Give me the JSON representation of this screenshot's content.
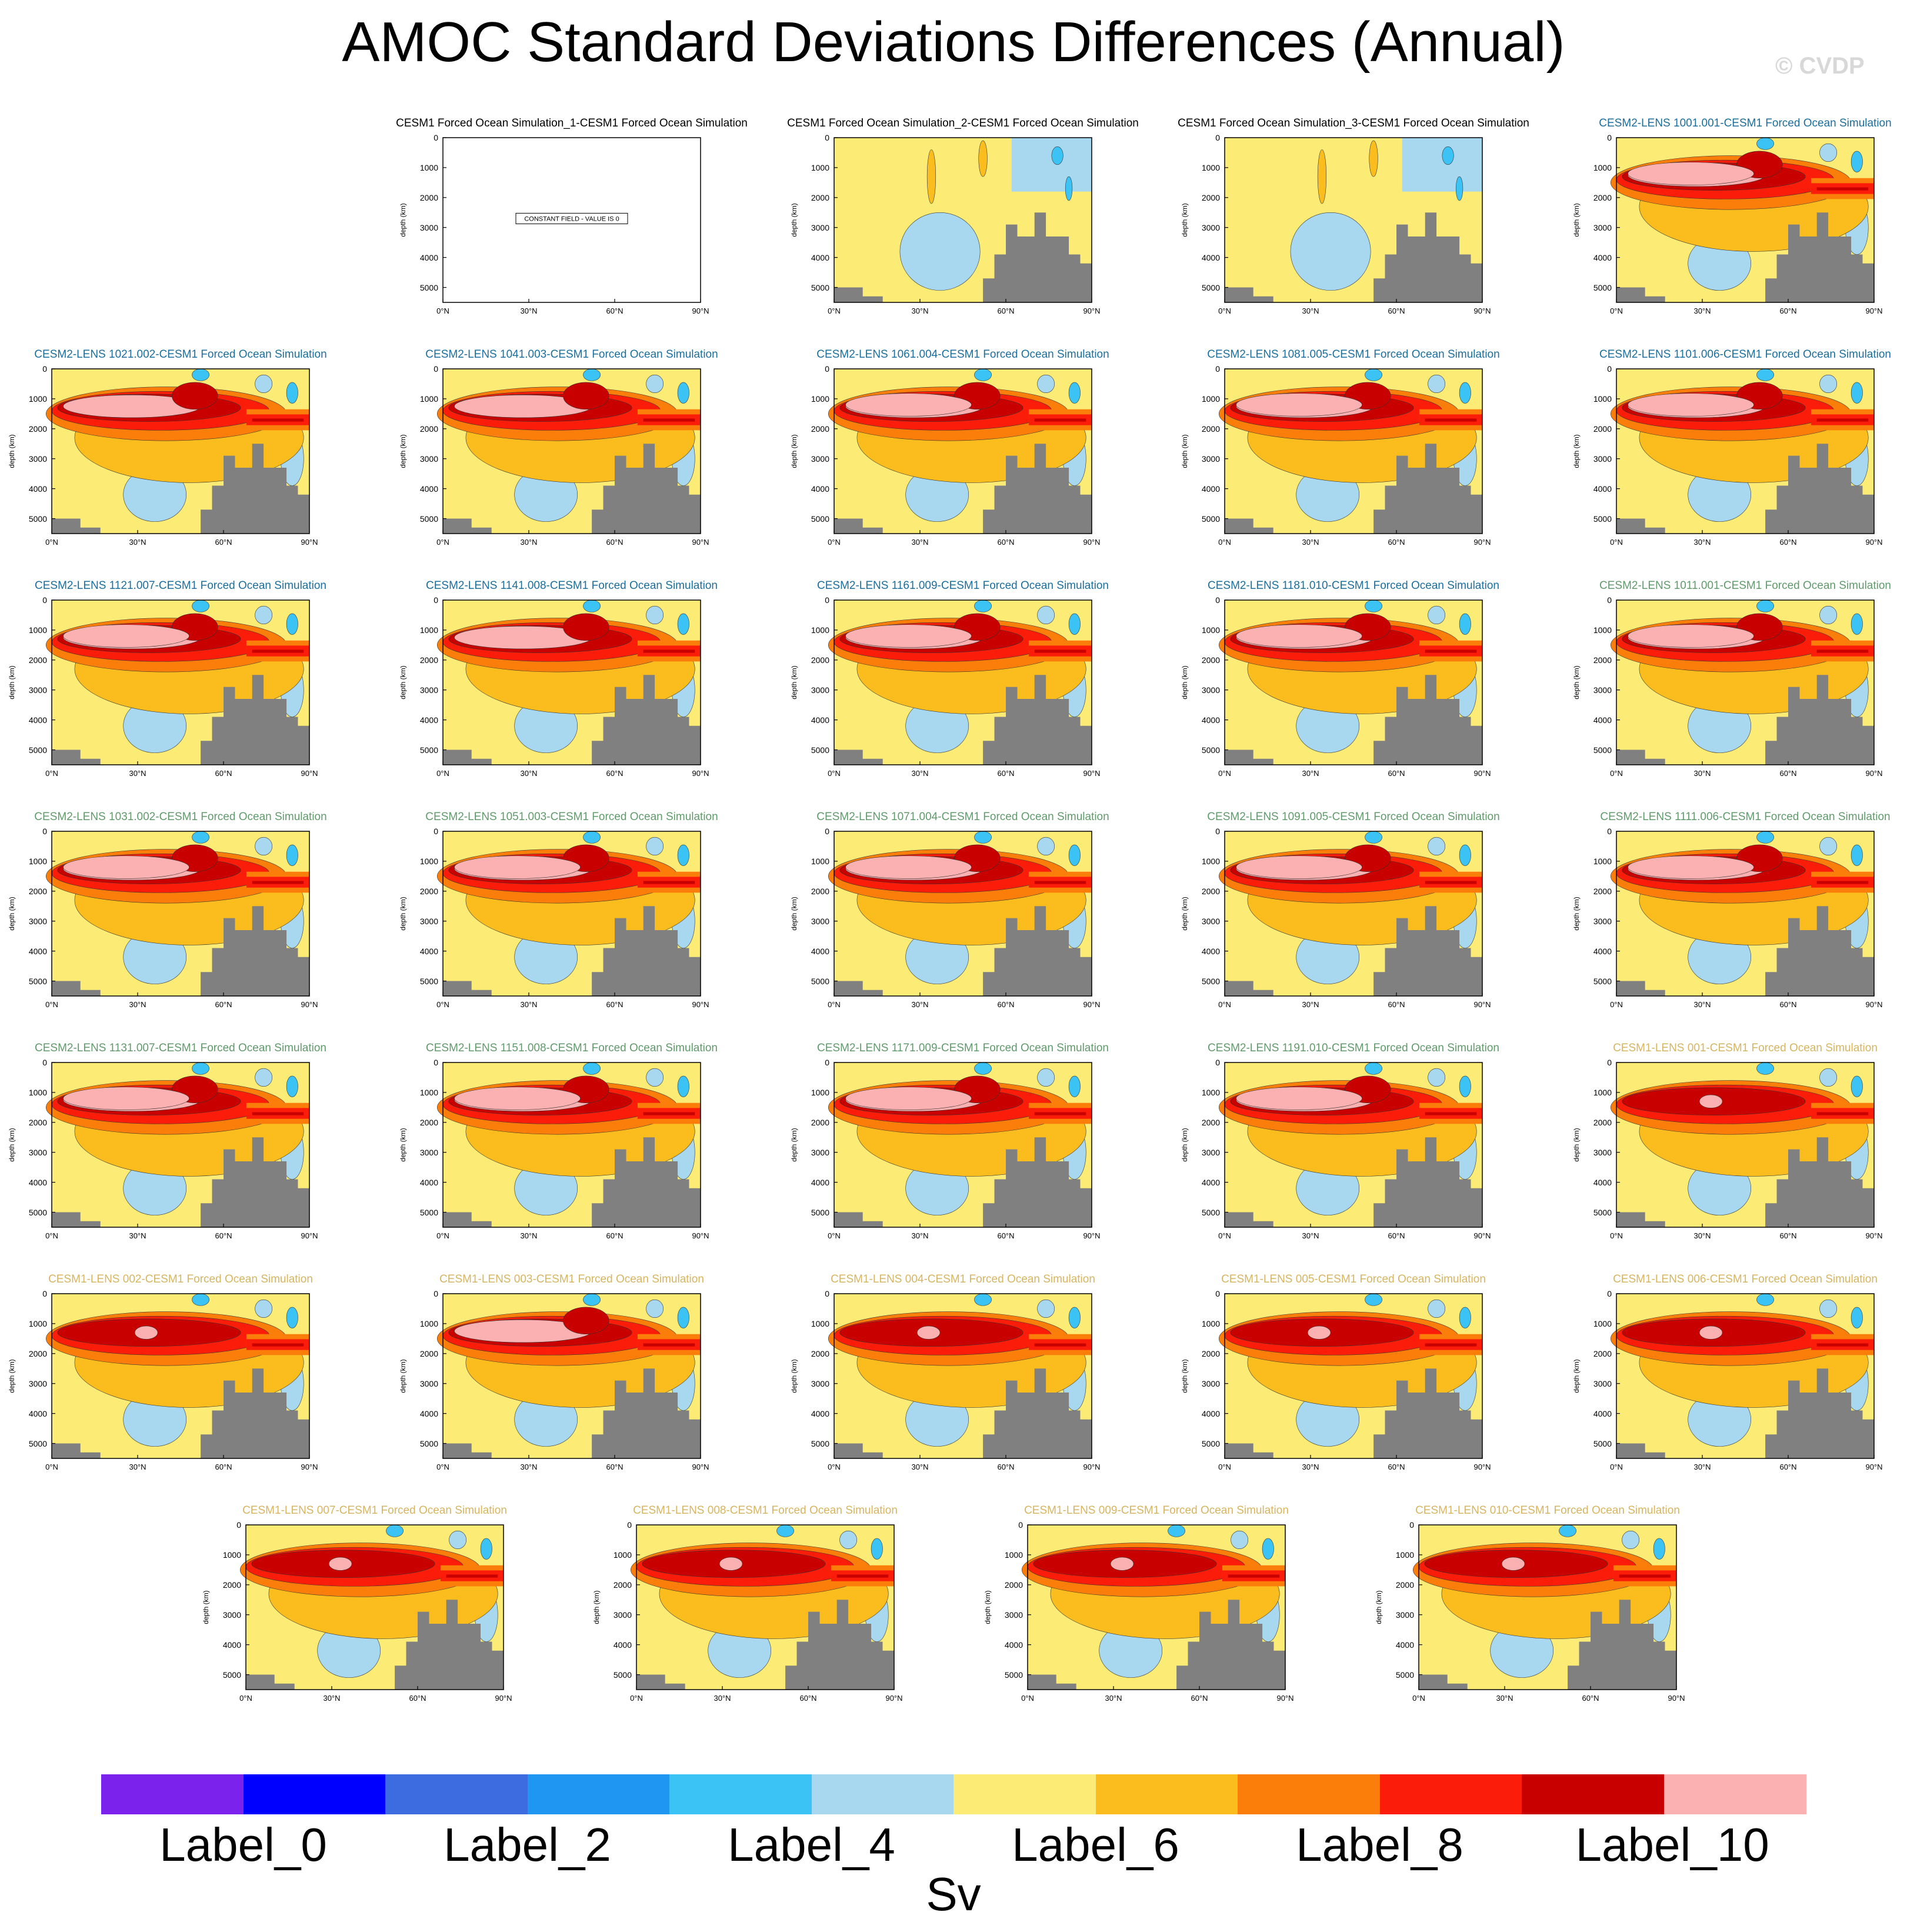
{
  "figure": {
    "title": "AMOC Standard Deviations Differences (Annual)",
    "watermark": "© CVDP",
    "units": "Sv",
    "y_axis_label": "depth (km)",
    "y_ticks": [
      "0",
      "1000",
      "2000",
      "3000",
      "4000",
      "5000"
    ],
    "x_ticks": [
      "0°N",
      "30°N",
      "60°N",
      "90°N"
    ],
    "constant_field_note": "CONSTANT FIELD - VALUE IS 0",
    "title_colors": {
      "forced": "#000000",
      "cesm2_a": "#1a6e9e",
      "cesm2_b": "#5f9a6a",
      "cesm1": "#d7b560"
    }
  },
  "chart_data": {
    "type": "contour",
    "title": "AMOC Standard Deviations Differences (Annual)",
    "xlabel": "",
    "ylabel": "depth (km)",
    "xlim": [
      0,
      90
    ],
    "ylim": [
      5500,
      0
    ],
    "x_ticks": [
      "0°N",
      "30°N",
      "60°N",
      "90°N"
    ],
    "y_ticks": [
      0,
      1000,
      2000,
      3000,
      4000,
      5000
    ],
    "units": "Sv",
    "colorbar": {
      "colors": [
        "#7b22ec",
        "#0000ff",
        "#3d6be0",
        "#1e96f2",
        "#3cc3f5",
        "#a8d8f0",
        "#fcec76",
        "#fbbd1d",
        "#fb7d0a",
        "#fb1d0a",
        "#c80000",
        "#fbb1b1"
      ],
      "labels": [
        "Label_0",
        "Label_2",
        "Label_4",
        "Label_6",
        "Label_8",
        "Label_10"
      ]
    },
    "panels": [
      {
        "title": "CESM1 Forced Ocean Simulation_1-CESM1 Forced Ocean Simulation",
        "group": "forced",
        "constant": true,
        "value": 0
      },
      {
        "title": "CESM1 Forced Ocean Simulation_2-CESM1 Forced Ocean Simulation",
        "group": "forced",
        "intensity": 0
      },
      {
        "title": "CESM1 Forced Ocean Simulation_3-CESM1 Forced Ocean Simulation",
        "group": "forced",
        "intensity": 0
      },
      {
        "title": "CESM2-LENS 1001.001-CESM1 Forced Ocean Simulation",
        "group": "cesm2_a",
        "intensity": 3
      },
      {
        "title": "CESM2-LENS 1021.002-CESM1 Forced Ocean Simulation",
        "group": "cesm2_a",
        "intensity": 2
      },
      {
        "title": "CESM2-LENS 1041.003-CESM1 Forced Ocean Simulation",
        "group": "cesm2_a",
        "intensity": 2
      },
      {
        "title": "CESM2-LENS 1061.004-CESM1 Forced Ocean Simulation",
        "group": "cesm2_a",
        "intensity": 3
      },
      {
        "title": "CESM2-LENS 1081.005-CESM1 Forced Ocean Simulation",
        "group": "cesm2_a",
        "intensity": 3
      },
      {
        "title": "CESM2-LENS 1101.006-CESM1 Forced Ocean Simulation",
        "group": "cesm2_a",
        "intensity": 3
      },
      {
        "title": "CESM2-LENS 1121.007-CESM1 Forced Ocean Simulation",
        "group": "cesm2_a",
        "intensity": 3
      },
      {
        "title": "CESM2-LENS 1141.008-CESM1 Forced Ocean Simulation",
        "group": "cesm2_a",
        "intensity": 2
      },
      {
        "title": "CESM2-LENS 1161.009-CESM1 Forced Ocean Simulation",
        "group": "cesm2_a",
        "intensity": 3
      },
      {
        "title": "CESM2-LENS 1181.010-CESM1 Forced Ocean Simulation",
        "group": "cesm2_a",
        "intensity": 3
      },
      {
        "title": "CESM2-LENS 1011.001-CESM1 Forced Ocean Simulation",
        "group": "cesm2_b",
        "intensity": 3
      },
      {
        "title": "CESM2-LENS 1031.002-CESM1 Forced Ocean Simulation",
        "group": "cesm2_b",
        "intensity": 3
      },
      {
        "title": "CESM2-LENS 1051.003-CESM1 Forced Ocean Simulation",
        "group": "cesm2_b",
        "intensity": 3
      },
      {
        "title": "CESM2-LENS 1071.004-CESM1 Forced Ocean Simulation",
        "group": "cesm2_b",
        "intensity": 3
      },
      {
        "title": "CESM2-LENS 1091.005-CESM1 Forced Ocean Simulation",
        "group": "cesm2_b",
        "intensity": 3
      },
      {
        "title": "CESM2-LENS 1111.006-CESM1 Forced Ocean Simulation",
        "group": "cesm2_b",
        "intensity": 3
      },
      {
        "title": "CESM2-LENS 1131.007-CESM1 Forced Ocean Simulation",
        "group": "cesm2_b",
        "intensity": 3
      },
      {
        "title": "CESM2-LENS 1151.008-CESM1 Forced Ocean Simulation",
        "group": "cesm2_b",
        "intensity": 3
      },
      {
        "title": "CESM2-LENS 1171.009-CESM1 Forced Ocean Simulation",
        "group": "cesm2_b",
        "intensity": 3
      },
      {
        "title": "CESM2-LENS 1191.010-CESM1 Forced Ocean Simulation",
        "group": "cesm2_b",
        "intensity": 3
      },
      {
        "title": "CESM1-LENS 001-CESM1 Forced Ocean Simulation",
        "group": "cesm1",
        "intensity": 1
      },
      {
        "title": "CESM1-LENS 002-CESM1 Forced Ocean Simulation",
        "group": "cesm1",
        "intensity": 1
      },
      {
        "title": "CESM1-LENS 003-CESM1 Forced Ocean Simulation",
        "group": "cesm1",
        "intensity": 2
      },
      {
        "title": "CESM1-LENS 004-CESM1 Forced Ocean Simulation",
        "group": "cesm1",
        "intensity": 1
      },
      {
        "title": "CESM1-LENS 005-CESM1 Forced Ocean Simulation",
        "group": "cesm1",
        "intensity": 1
      },
      {
        "title": "CESM1-LENS 006-CESM1 Forced Ocean Simulation",
        "group": "cesm1",
        "intensity": 1
      },
      {
        "title": "CESM1-LENS 007-CESM1 Forced Ocean Simulation",
        "group": "cesm1",
        "intensity": 1
      },
      {
        "title": "CESM1-LENS 008-CESM1 Forced Ocean Simulation",
        "group": "cesm1",
        "intensity": 1
      },
      {
        "title": "CESM1-LENS 009-CESM1 Forced Ocean Simulation",
        "group": "cesm1",
        "intensity": 1
      },
      {
        "title": "CESM1-LENS 010-CESM1 Forced Ocean Simulation",
        "group": "cesm1",
        "intensity": 1
      }
    ]
  }
}
